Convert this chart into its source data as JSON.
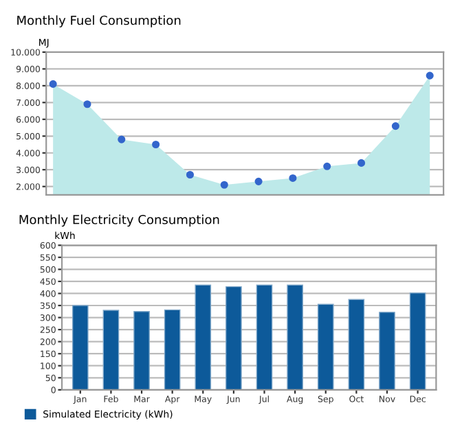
{
  "chart_data": [
    {
      "type": "area",
      "title": "Monthly Fuel Consumption",
      "ylabel": "MJ",
      "categories": [
        null,
        null,
        null,
        null,
        null,
        null,
        null,
        null,
        null,
        null,
        null,
        null
      ],
      "series": [
        {
          "color": "#bde9e9",
          "values": [
            8100,
            6900,
            4800,
            4500,
            2700,
            2100,
            2300,
            2500,
            3200,
            3400,
            5600,
            8600
          ]
        }
      ],
      "marker": "circle",
      "ylim": [
        1500,
        10000
      ],
      "yticks": [
        {
          "value": 2000,
          "label": "2.000"
        },
        {
          "value": 3000,
          "label": "3.000"
        },
        {
          "value": 4000,
          "label": "4.000"
        },
        {
          "value": 5000,
          "label": "5.000"
        },
        {
          "value": 6000,
          "label": "6.000"
        },
        {
          "value": 7000,
          "label": "7.000"
        },
        {
          "value": 8000,
          "label": "8.000"
        },
        {
          "value": 9000,
          "label": "9.000"
        },
        {
          "value": 10000,
          "label": "10.000"
        }
      ],
      "grid": "y",
      "tick_labels": "y"
    },
    {
      "type": "bar",
      "title": "Monthly Electricity Consumption",
      "ylabel": "kWh",
      "categories": [
        "Jan",
        "Feb",
        "Mar",
        "Apr",
        "May",
        "Jun",
        "Jul",
        "Aug",
        "Sep",
        "Oct",
        "Nov",
        "Dec"
      ],
      "series": [
        {
          "name": "Simulated Electricity (kWh)",
          "color": "#0d5a9a",
          "values": [
            350,
            330,
            325,
            332,
            435,
            428,
            435,
            435,
            355,
            375,
            322,
            402
          ]
        }
      ],
      "ylim": [
        0,
        600
      ],
      "yticks": [
        0,
        50,
        100,
        150,
        200,
        250,
        300,
        350,
        400,
        450,
        500,
        550,
        600
      ],
      "grid": "y",
      "legend": "bottom left"
    }
  ]
}
